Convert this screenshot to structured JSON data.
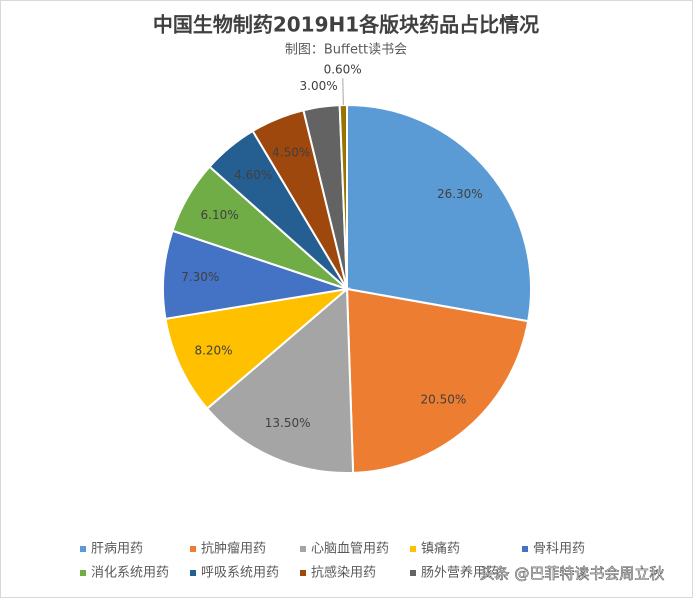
{
  "chart_data": {
    "type": "pie",
    "title": "中国生物制药2019H1各版块药品占比情况",
    "subtitle": "制图：Buffett读书会",
    "categories": [
      "肝病用药",
      "抗肿瘤用药",
      "心脑血管用药",
      "镇痛药",
      "骨科用药",
      "消化系统用药",
      "呼吸系统用药",
      "抗感染用药",
      "肠外营养用药",
      null
    ],
    "values": [
      26.3,
      20.5,
      13.5,
      8.2,
      7.3,
      6.1,
      4.6,
      4.5,
      3.0,
      0.6
    ],
    "value_labels": [
      "26.30%",
      "20.50%",
      "13.50%",
      "8.20%",
      "7.30%",
      "6.10%",
      "4.60%",
      "4.50%",
      "3.00%",
      "0.60%"
    ],
    "colors": [
      "#5b9bd5",
      "#ed7d31",
      "#a5a5a5",
      "#ffc000",
      "#4472c4",
      "#70ad47",
      "#255e91",
      "#9e480e",
      "#636363",
      "#997300"
    ],
    "annotation": "头条 @巴菲特读书会周立秋"
  }
}
